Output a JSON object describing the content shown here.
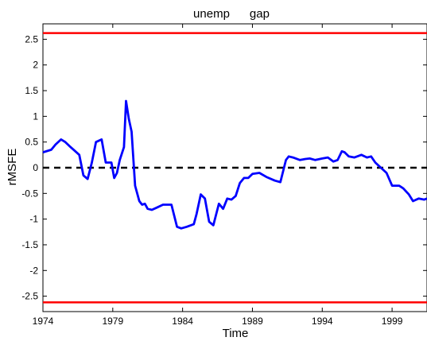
{
  "chart_data": {
    "type": "line",
    "title": "unemp      gap",
    "xlabel": "Time",
    "ylabel": "rMSFE",
    "xlim": [
      1974,
      2001.5
    ],
    "ylim": [
      -2.8,
      2.8
    ],
    "xticks": [
      1974,
      1979,
      1984,
      1989,
      1994,
      1999
    ],
    "xtick_labels": [
      "1974",
      "1979",
      "1984",
      "1989",
      "1994",
      "1999"
    ],
    "yticks": [
      2.5,
      2,
      1.5,
      1,
      0.5,
      0,
      -0.5,
      -1,
      -1.5,
      -2,
      -2.5
    ],
    "ytick_labels": [
      "2.5",
      "2",
      "1.5",
      "1",
      "0.5",
      "0",
      "-0.5",
      "-1",
      "-1.5",
      "-2",
      "-2.5"
    ],
    "grid": false,
    "series": [
      {
        "color": "#0000ff",
        "style": "solid",
        "x": [
          1974.0,
          1974.6,
          1974.9,
          1975.3,
          1975.6,
          1975.9,
          1976.2,
          1976.6,
          1976.9,
          1977.2,
          1977.5,
          1977.8,
          1978.2,
          1978.5,
          1978.9,
          1979.1,
          1979.3,
          1979.5,
          1979.8,
          1979.95,
          1980.15,
          1980.35,
          1980.6,
          1980.9,
          1981.1,
          1981.3,
          1981.5,
          1981.8,
          1982.2,
          1982.6,
          1983.2,
          1983.6,
          1983.9,
          1984.3,
          1984.8,
          1985.0,
          1985.3,
          1985.6,
          1985.9,
          1986.2,
          1986.6,
          1986.9,
          1987.2,
          1987.5,
          1987.8,
          1988.1,
          1988.4,
          1988.7,
          1989.0,
          1989.5,
          1990.0,
          1990.6,
          1991.0,
          1991.4,
          1991.6,
          1991.9,
          1992.4,
          1992.8,
          1993.1,
          1993.5,
          1994.0,
          1994.4,
          1994.8,
          1995.1,
          1995.4,
          1995.6,
          1995.9,
          1996.3,
          1996.8,
          1997.2,
          1997.5,
          1997.8,
          1998.2,
          1998.6,
          1999.0,
          1999.5,
          1999.8,
          2000.2,
          2000.5,
          2000.9,
          2001.3,
          2001.5
        ],
        "y": [
          0.3,
          0.35,
          0.45,
          0.55,
          0.5,
          0.42,
          0.35,
          0.25,
          -0.15,
          -0.22,
          0.1,
          0.5,
          0.55,
          0.1,
          0.1,
          -0.2,
          -0.1,
          0.15,
          0.4,
          1.3,
          0.95,
          0.7,
          -0.35,
          -0.65,
          -0.72,
          -0.7,
          -0.8,
          -0.82,
          -0.77,
          -0.72,
          -0.72,
          -1.15,
          -1.18,
          -1.15,
          -1.1,
          -0.9,
          -0.52,
          -0.6,
          -1.05,
          -1.12,
          -0.7,
          -0.8,
          -0.6,
          -0.62,
          -0.55,
          -0.3,
          -0.2,
          -0.2,
          -0.12,
          -0.1,
          -0.18,
          -0.25,
          -0.28,
          0.15,
          0.22,
          0.2,
          0.15,
          0.17,
          0.18,
          0.15,
          0.18,
          0.2,
          0.12,
          0.15,
          0.32,
          0.3,
          0.22,
          0.2,
          0.25,
          0.2,
          0.22,
          0.1,
          0.0,
          -0.1,
          -0.35,
          -0.35,
          -0.4,
          -0.52,
          -0.65,
          -0.6,
          -0.62,
          -0.6
        ]
      },
      {
        "color": "#000000",
        "style": "dashed",
        "x": [
          1974,
          2001.5
        ],
        "y": [
          0,
          0
        ]
      },
      {
        "color": "#ff0000",
        "style": "solid",
        "x": [
          1974,
          2001.5
        ],
        "y": [
          2.62,
          2.62
        ]
      },
      {
        "color": "#ff0000",
        "style": "solid",
        "x": [
          1974,
          2001.5
        ],
        "y": [
          -2.62,
          -2.62
        ]
      }
    ]
  }
}
